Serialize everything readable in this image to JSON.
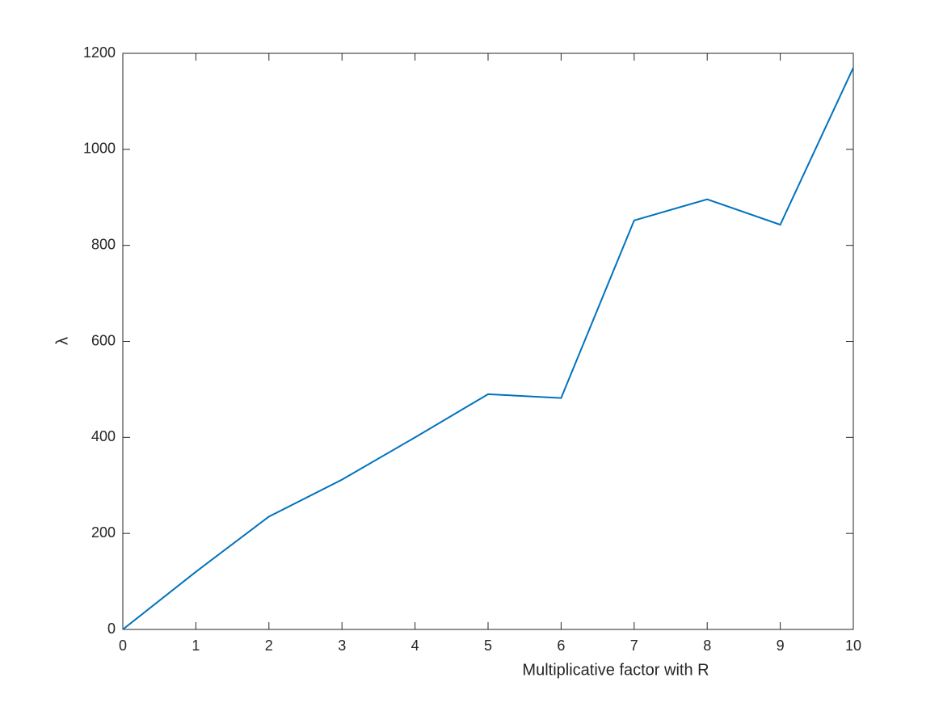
{
  "chart_data": {
    "type": "line",
    "xlabel": "Multiplicative factor with R",
    "ylabel": "λ",
    "x": [
      0,
      1,
      2,
      3,
      4,
      5,
      6,
      7,
      8,
      9,
      10
    ],
    "series": [
      {
        "color": "#0072bd",
        "values": [
          0,
          120,
          235,
          312,
          400,
          490,
          482,
          852,
          896,
          843,
          1170
        ]
      }
    ],
    "xlim": [
      0,
      10
    ],
    "xticks": [
      0,
      1,
      2,
      3,
      4,
      5,
      6,
      7,
      8,
      9,
      10
    ],
    "ylim": [
      0,
      1200
    ],
    "yticks": [
      0,
      200,
      400,
      600,
      800,
      1000,
      1200
    ],
    "grid": false
  }
}
